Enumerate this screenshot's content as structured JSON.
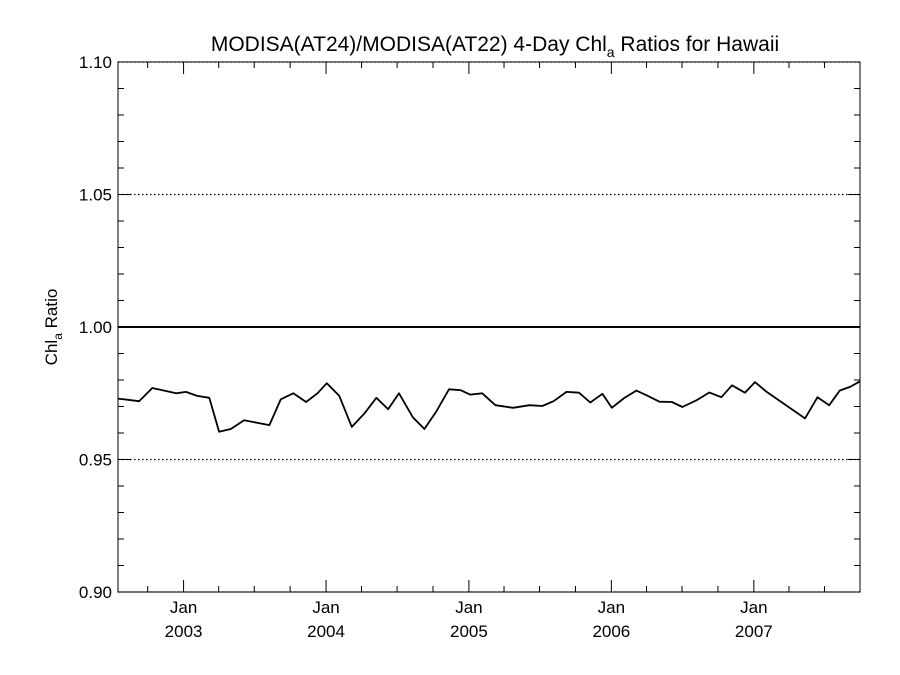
{
  "chart_data": {
    "type": "line",
    "title": {
      "main": "MODISA(AT24)/MODISA(AT22) 4-Day Chl",
      "sub": "a",
      "rest": " Ratios for Hawaii"
    },
    "ylabel": {
      "main": "Chl",
      "sub": "a",
      "rest": " Ratio"
    },
    "ylim": [
      0.9,
      1.1
    ],
    "yticks": [
      {
        "value": 0.9,
        "label": "0.90"
      },
      {
        "value": 0.95,
        "label": "0.95"
      },
      {
        "value": 1.0,
        "label": "1.00"
      },
      {
        "value": 1.05,
        "label": "1.05"
      },
      {
        "value": 1.1,
        "label": "1.10"
      }
    ],
    "xlim": [
      "2002-07-17",
      "2007-09-30"
    ],
    "xticks": [
      {
        "date": "2003-01-01",
        "month": "Jan",
        "year": "2003"
      },
      {
        "date": "2004-01-01",
        "month": "Jan",
        "year": "2004"
      },
      {
        "date": "2005-01-01",
        "month": "Jan",
        "year": "2005"
      },
      {
        "date": "2006-01-01",
        "month": "Jan",
        "year": "2006"
      },
      {
        "date": "2007-01-01",
        "month": "Jan",
        "year": "2007"
      }
    ],
    "grid": "dotted horizontal at major y ticks",
    "reference_line": 1.0,
    "series": [
      {
        "color": "#000000",
        "x": [
          "2002-07-17",
          "2002-09-09",
          "2002-10-13",
          "2002-12-13",
          "2003-01-07",
          "2003-02-05",
          "2003-03-08",
          "2003-04-02",
          "2003-05-02",
          "2003-06-05",
          "2003-08-09",
          "2003-09-07",
          "2003-10-09",
          "2003-11-11",
          "2003-12-10",
          "2004-01-03",
          "2004-02-04",
          "2004-03-07",
          "2004-04-09",
          "2004-05-09",
          "2004-06-08",
          "2004-07-06",
          "2004-08-10",
          "2004-09-09",
          "2004-10-09",
          "2004-11-11",
          "2004-12-10",
          "2005-01-04",
          "2005-02-04",
          "2005-03-10",
          "2005-04-24",
          "2005-06-05",
          "2005-07-08",
          "2005-08-06",
          "2005-09-08",
          "2005-10-10",
          "2005-11-08",
          "2005-12-09",
          "2006-01-02",
          "2006-02-03",
          "2006-03-06",
          "2006-04-02",
          "2006-05-04",
          "2006-06-05",
          "2006-07-02",
          "2006-08-09",
          "2006-09-09",
          "2006-10-10",
          "2006-11-06",
          "2006-12-09",
          "2007-01-04",
          "2007-02-03",
          "2007-05-12",
          "2007-06-13",
          "2007-07-13",
          "2007-08-09",
          "2007-09-06",
          "2007-09-30"
        ],
        "values": [
          0.973,
          0.972,
          0.977,
          0.975,
          0.9755,
          0.974,
          0.9733,
          0.9605,
          0.9615,
          0.9648,
          0.963,
          0.9727,
          0.975,
          0.9717,
          0.975,
          0.9788,
          0.974,
          0.9623,
          0.9675,
          0.9733,
          0.969,
          0.975,
          0.966,
          0.9615,
          0.968,
          0.9765,
          0.9762,
          0.9745,
          0.975,
          0.9705,
          0.9695,
          0.9705,
          0.9702,
          0.972,
          0.9755,
          0.9752,
          0.9715,
          0.9748,
          0.9695,
          0.9732,
          0.976,
          0.9742,
          0.9718,
          0.9717,
          0.9698,
          0.9725,
          0.9753,
          0.9735,
          0.978,
          0.9752,
          0.9792,
          0.9755,
          0.9655,
          0.9735,
          0.9705,
          0.976,
          0.9775,
          0.9795
        ]
      }
    ]
  }
}
